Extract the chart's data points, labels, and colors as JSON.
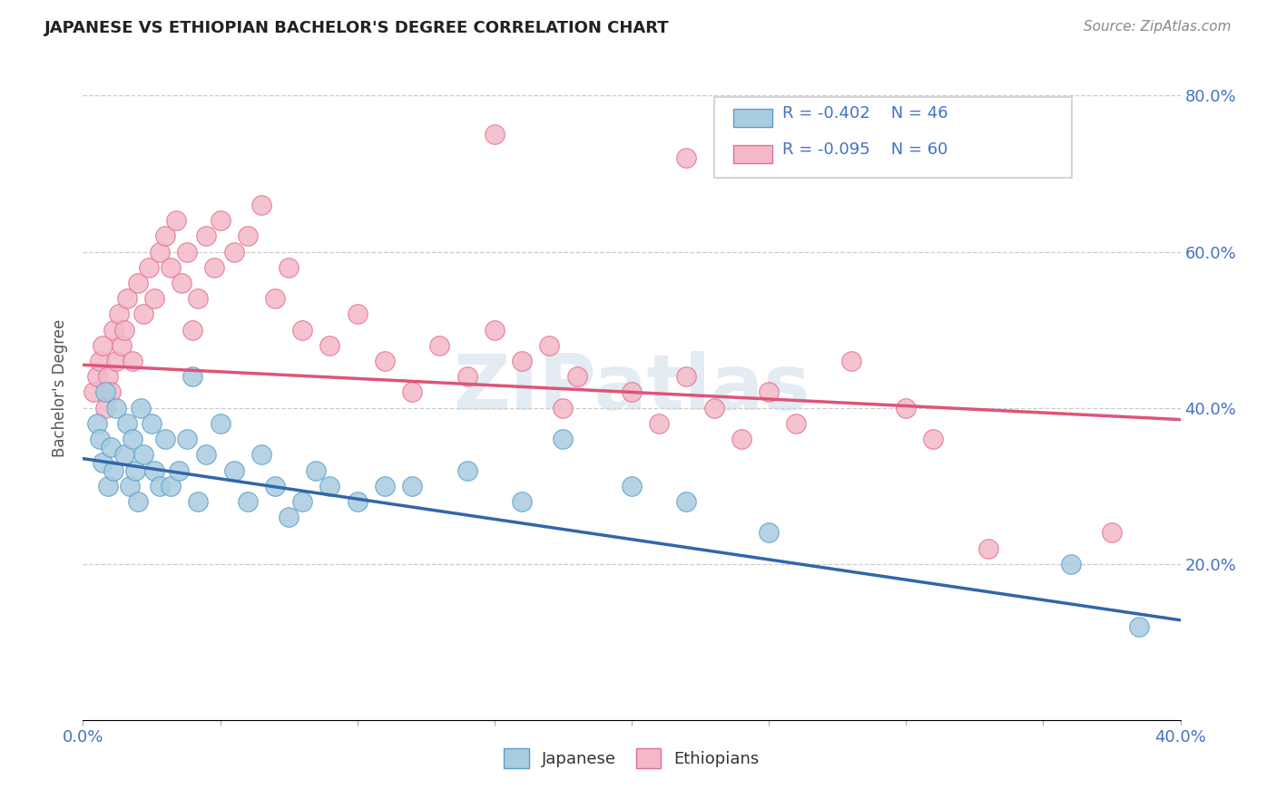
{
  "title": "JAPANESE VS ETHIOPIAN BACHELOR'S DEGREE CORRELATION CHART",
  "source": "Source: ZipAtlas.com",
  "ylabel": "Bachelor's Degree",
  "xlim": [
    0.0,
    0.4
  ],
  "ylim": [
    0.0,
    0.85
  ],
  "ytick_positions": [
    0.2,
    0.4,
    0.6,
    0.8
  ],
  "ytick_labels": [
    "20.0%",
    "40.0%",
    "60.0%",
    "80.0%"
  ],
  "xtick_positions": [
    0.0,
    0.05,
    0.1,
    0.15,
    0.2,
    0.25,
    0.3,
    0.35,
    0.4
  ],
  "legend_r_japanese": "-0.402",
  "legend_n_japanese": "46",
  "legend_r_ethiopian": "-0.095",
  "legend_n_ethiopian": "60",
  "japanese_face_color": "#a8cce0",
  "japanese_edge_color": "#5a9ec9",
  "ethiopian_face_color": "#f4b8c8",
  "ethiopian_edge_color": "#e07090",
  "japanese_line_color": "#3366aa",
  "ethiopian_line_color": "#dd5577",
  "watermark_color": "#c8d8e8",
  "watermark_text": "ZIPatlas",
  "jap_line_y0": 0.335,
  "jap_line_y1": 0.128,
  "eth_line_y0": 0.455,
  "eth_line_y1": 0.385,
  "japanese_x": [
    0.005,
    0.006,
    0.007,
    0.008,
    0.009,
    0.01,
    0.011,
    0.012,
    0.015,
    0.016,
    0.017,
    0.018,
    0.019,
    0.02,
    0.021,
    0.022,
    0.025,
    0.026,
    0.028,
    0.03,
    0.032,
    0.035,
    0.038,
    0.04,
    0.042,
    0.045,
    0.05,
    0.055,
    0.06,
    0.065,
    0.07,
    0.075,
    0.08,
    0.085,
    0.09,
    0.1,
    0.11,
    0.12,
    0.14,
    0.16,
    0.175,
    0.2,
    0.22,
    0.25,
    0.36,
    0.385
  ],
  "japanese_y": [
    0.38,
    0.36,
    0.33,
    0.42,
    0.3,
    0.35,
    0.32,
    0.4,
    0.34,
    0.38,
    0.3,
    0.36,
    0.32,
    0.28,
    0.4,
    0.34,
    0.38,
    0.32,
    0.3,
    0.36,
    0.3,
    0.32,
    0.36,
    0.44,
    0.28,
    0.34,
    0.38,
    0.32,
    0.28,
    0.34,
    0.3,
    0.26,
    0.28,
    0.32,
    0.3,
    0.28,
    0.3,
    0.3,
    0.32,
    0.28,
    0.36,
    0.3,
    0.28,
    0.24,
    0.2,
    0.12
  ],
  "ethiopian_x": [
    0.004,
    0.005,
    0.006,
    0.007,
    0.008,
    0.009,
    0.01,
    0.011,
    0.012,
    0.013,
    0.014,
    0.015,
    0.016,
    0.018,
    0.02,
    0.022,
    0.024,
    0.026,
    0.028,
    0.03,
    0.032,
    0.034,
    0.036,
    0.038,
    0.04,
    0.042,
    0.045,
    0.048,
    0.05,
    0.055,
    0.06,
    0.065,
    0.07,
    0.075,
    0.08,
    0.09,
    0.1,
    0.11,
    0.12,
    0.13,
    0.14,
    0.15,
    0.16,
    0.17,
    0.175,
    0.18,
    0.2,
    0.21,
    0.22,
    0.23,
    0.24,
    0.25,
    0.26,
    0.28,
    0.3,
    0.31,
    0.15,
    0.22,
    0.33,
    0.375
  ],
  "ethiopian_y": [
    0.42,
    0.44,
    0.46,
    0.48,
    0.4,
    0.44,
    0.42,
    0.5,
    0.46,
    0.52,
    0.48,
    0.5,
    0.54,
    0.46,
    0.56,
    0.52,
    0.58,
    0.54,
    0.6,
    0.62,
    0.58,
    0.64,
    0.56,
    0.6,
    0.5,
    0.54,
    0.62,
    0.58,
    0.64,
    0.6,
    0.62,
    0.66,
    0.54,
    0.58,
    0.5,
    0.48,
    0.52,
    0.46,
    0.42,
    0.48,
    0.44,
    0.5,
    0.46,
    0.48,
    0.4,
    0.44,
    0.42,
    0.38,
    0.44,
    0.4,
    0.36,
    0.42,
    0.38,
    0.46,
    0.4,
    0.36,
    0.75,
    0.72,
    0.22,
    0.24
  ]
}
